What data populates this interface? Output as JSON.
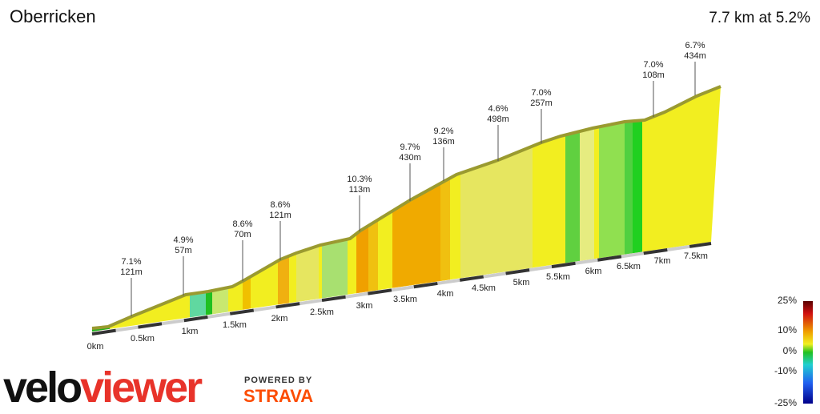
{
  "header": {
    "title": "Oberricken",
    "summary": "7.7 km at 5.2%"
  },
  "distance_labels": [
    "0km",
    "0.5km",
    "1km",
    "1.5km",
    "2km",
    "2.5km",
    "3km",
    "3.5km",
    "4km",
    "4.5km",
    "5km",
    "5.5km",
    "6km",
    "6.5km",
    "7km",
    "7.5km"
  ],
  "climb_annotations": [
    {
      "gradient": "7.1%",
      "length": "121m"
    },
    {
      "gradient": "4.9%",
      "length": "57m"
    },
    {
      "gradient": "8.6%",
      "length": "70m"
    },
    {
      "gradient": "8.6%",
      "length": "121m"
    },
    {
      "gradient": "10.3%",
      "length": "113m"
    },
    {
      "gradient": "9.7%",
      "length": "430m"
    },
    {
      "gradient": "9.2%",
      "length": "136m"
    },
    {
      "gradient": "4.6%",
      "length": "498m"
    },
    {
      "gradient": "7.0%",
      "length": "257m"
    },
    {
      "gradient": "7.0%",
      "length": "108m"
    },
    {
      "gradient": "6.7%",
      "length": "434m"
    }
  ],
  "legend": {
    "labels": [
      "25%",
      "10%",
      "0%",
      "-10%",
      "-25%"
    ]
  },
  "brand": {
    "logo_a": "velo",
    "logo_b": "viewer",
    "powered_by": "POWERED BY",
    "partner": "STRAVA"
  }
}
